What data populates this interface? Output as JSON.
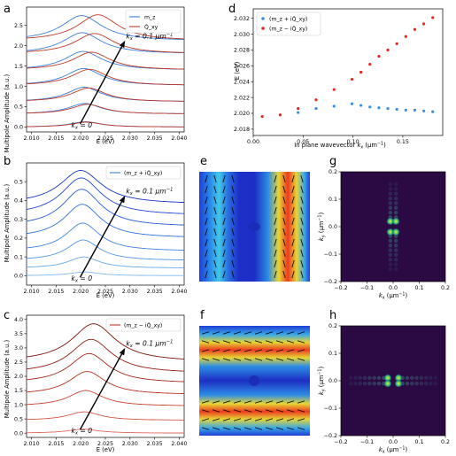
{
  "chart_data": [
    {
      "panel": "a",
      "type": "line",
      "xlabel": "E (eV)",
      "ylabel": "Multipole Amplitude (a.u.)",
      "xlim": [
        2.009,
        2.041
      ],
      "ylim": [
        -0.12,
        2.95
      ],
      "xticks": [
        "2.010",
        "2.015",
        "2.020",
        "2.025",
        "2.030",
        "2.035",
        "2.040"
      ],
      "yticks": [
        "0.0",
        "0.5",
        "1.0",
        "1.5",
        "2.0",
        "2.5"
      ],
      "legend": {
        "position": "top-right",
        "entries": [
          {
            "label": "m_z",
            "color": "#3b7ddd"
          },
          {
            "label": "Q̂_xy",
            "color": "#c0392b"
          }
        ]
      },
      "annotations": {
        "start": "k_x = 0",
        "end": "k_x = 0.1 μm^-1"
      },
      "series": [
        {
          "offset": 0.0,
          "peak_E": [
            2.021,
            2.0212
          ],
          "amp": [
            0.13,
            0.12
          ],
          "width": 0.0038
        },
        {
          "offset": 0.32,
          "peak_E": [
            2.0208,
            2.0214
          ],
          "amp": [
            0.26,
            0.24
          ],
          "width": 0.004
        },
        {
          "offset": 0.62,
          "peak_E": [
            2.0207,
            2.0216
          ],
          "amp": [
            0.36,
            0.34
          ],
          "width": 0.0042
        },
        {
          "offset": 1.02,
          "peak_E": [
            2.0206,
            2.0218
          ],
          "amp": [
            0.42,
            0.4
          ],
          "width": 0.0044
        },
        {
          "offset": 1.4,
          "peak_E": [
            2.0205,
            2.0222
          ],
          "amp": [
            0.46,
            0.44
          ],
          "width": 0.0046
        },
        {
          "offset": 1.8,
          "peak_E": [
            2.0203,
            2.0228
          ],
          "amp": [
            0.52,
            0.5
          ],
          "width": 0.0048
        },
        {
          "offset": 2.12,
          "peak_E": [
            2.0202,
            2.0235
          ],
          "amp": [
            0.62,
            0.64
          ],
          "width": 0.005
        }
      ]
    },
    {
      "panel": "b",
      "type": "line",
      "xlabel": "E (eV)",
      "ylabel": "Multipole Amplitude (a.u.)",
      "xlim": [
        2.009,
        2.041
      ],
      "ylim": [
        -0.05,
        0.6
      ],
      "xticks": [
        "2.010",
        "2.015",
        "2.020",
        "2.025",
        "2.030",
        "2.035",
        "2.040"
      ],
      "yticks": [
        "0.0",
        "0.1",
        "0.2",
        "0.3",
        "0.4",
        "0.5"
      ],
      "legend": {
        "position": "top-right",
        "entries": [
          {
            "label": "(m_z + iQ̂_xy)",
            "color": "#3b7ddd"
          }
        ]
      },
      "annotations": {
        "start": "k_x = 0",
        "end": "k_x = 0.1 μm^-1"
      },
      "series": [
        {
          "offset": 0.0,
          "peak_E": 2.0208,
          "amp": 0.02,
          "width": 0.0036,
          "color": "#7fb8ee"
        },
        {
          "offset": 0.04,
          "peak_E": 2.0206,
          "amp": 0.06,
          "width": 0.0038,
          "color": "#6aa9ea"
        },
        {
          "offset": 0.08,
          "peak_E": 2.0205,
          "amp": 0.11,
          "width": 0.004,
          "color": "#5597e6"
        },
        {
          "offset": 0.13,
          "peak_E": 2.0204,
          "amp": 0.15,
          "width": 0.0042,
          "color": "#4383e2"
        },
        {
          "offset": 0.2,
          "peak_E": 2.0203,
          "amp": 0.18,
          "width": 0.0045,
          "color": "#3370dc"
        },
        {
          "offset": 0.26,
          "peak_E": 2.0202,
          "amp": 0.2,
          "width": 0.0047,
          "color": "#2a5cd6"
        },
        {
          "offset": 0.32,
          "peak_E": 2.0201,
          "amp": 0.2,
          "width": 0.0049,
          "color": "#2248ce"
        },
        {
          "offset": 0.38,
          "peak_E": 2.02,
          "amp": 0.18,
          "width": 0.0051,
          "color": "#1a34c6"
        }
      ]
    },
    {
      "panel": "c",
      "type": "line",
      "xlabel": "E (eV)",
      "ylabel": "Multipole Amplitude (a.u.)",
      "xlim": [
        2.009,
        2.041
      ],
      "ylim": [
        -0.15,
        4.15
      ],
      "xticks": [
        "2.010",
        "2.015",
        "2.020",
        "2.025",
        "2.030",
        "2.035",
        "2.040"
      ],
      "yticks": [
        "0.0",
        "0.5",
        "1.0",
        "1.5",
        "2.0",
        "2.5",
        "3.0",
        "3.5",
        "4.0"
      ],
      "legend": {
        "position": "top-right",
        "entries": [
          {
            "label": "(m_z − iQ̂_xy)",
            "color": "#c0392b"
          }
        ]
      },
      "annotations": {
        "start": "k_x = 0",
        "end": "k_x = 0.1 μm^-1"
      },
      "series": [
        {
          "offset": 0.0,
          "peak_E": 2.0205,
          "amp": 0.14,
          "width": 0.0038,
          "color": "#e06a5e"
        },
        {
          "offset": 0.45,
          "peak_E": 2.0207,
          "amp": 0.3,
          "width": 0.004,
          "color": "#d55548"
        },
        {
          "offset": 0.95,
          "peak_E": 2.021,
          "amp": 0.55,
          "width": 0.0042,
          "color": "#c9412f"
        },
        {
          "offset": 1.35,
          "peak_E": 2.0213,
          "amp": 0.82,
          "width": 0.0045,
          "color": "#b93320"
        },
        {
          "offset": 1.75,
          "peak_E": 2.0217,
          "amp": 1.05,
          "width": 0.0048,
          "color": "#a52818"
        },
        {
          "offset": 2.1,
          "peak_E": 2.0221,
          "amp": 1.2,
          "width": 0.0051,
          "color": "#901e12"
        },
        {
          "offset": 2.5,
          "peak_E": 2.0226,
          "amp": 1.35,
          "width": 0.0054,
          "color": "#7c150d"
        }
      ]
    },
    {
      "panel": "d",
      "type": "scatter",
      "xlabel": "In plane wavevector k_x (μm^-1)",
      "ylabel": "E (eV)",
      "xlim": [
        0.0,
        0.19
      ],
      "ylim": [
        2.0172,
        2.0332
      ],
      "xticks": [
        "0.00",
        "0.05",
        "0.10",
        "0.15"
      ],
      "yticks": [
        "2.018",
        "2.020",
        "2.022",
        "2.024",
        "2.026",
        "2.028",
        "2.030",
        "2.032"
      ],
      "legend": {
        "position": "top-left"
      },
      "series": [
        {
          "name": "(m_z + iQ̂_xy)",
          "color": "#3a8fe0",
          "x": [
            0.045,
            0.063,
            0.081,
            0.099,
            0.108,
            0.117,
            0.126,
            0.135,
            0.144,
            0.153,
            0.162,
            0.171,
            0.18
          ],
          "y": [
            2.0201,
            2.0206,
            2.0209,
            2.0212,
            2.021,
            2.0208,
            2.0207,
            2.0206,
            2.0205,
            2.0204,
            2.0204,
            2.0203,
            2.0202
          ]
        },
        {
          "name": "(m_z − iQ̂_xy)",
          "color": "#e8261e",
          "x": [
            0.009,
            0.027,
            0.045,
            0.063,
            0.081,
            0.099,
            0.108,
            0.117,
            0.126,
            0.135,
            0.144,
            0.153,
            0.162,
            0.171,
            0.18
          ],
          "y": [
            2.0196,
            2.0198,
            2.0206,
            2.0217,
            2.023,
            2.0243,
            2.0252,
            2.0262,
            2.0272,
            2.028,
            2.0288,
            2.0297,
            2.0306,
            2.0313,
            2.0321
          ]
        }
      ]
    },
    {
      "panel": "e",
      "type": "heatmap",
      "pattern": "vertical-stripes",
      "colormap": "jet"
    },
    {
      "panel": "f",
      "type": "heatmap",
      "pattern": "horizontal-stripes",
      "colormap": "jet"
    },
    {
      "panel": "g",
      "type": "heatmap",
      "pattern": "vertical-line-spots",
      "colormap": "viridis",
      "xlabel": "k_x (μm^-1)",
      "ylabel": "k_y (μm^-1)",
      "xlim": [
        -0.2,
        0.2
      ],
      "ylim": [
        -0.2,
        0.2
      ],
      "xticks": [
        "−0.2",
        "−0.1",
        "0.0",
        "0.1",
        "0.2"
      ],
      "yticks": [
        "−0.2",
        "−0.1",
        "0.0",
        "0.1",
        "0.2"
      ]
    },
    {
      "panel": "h",
      "type": "heatmap",
      "pattern": "horizontal-line-spots",
      "colormap": "viridis",
      "xlabel": "k_x (μm^-1)",
      "ylabel": "k_y (μm^-1)",
      "xlim": [
        -0.2,
        0.2
      ],
      "ylim": [
        -0.2,
        0.2
      ],
      "xticks": [
        "−0.2",
        "−0.1",
        "0.0",
        "0.1",
        "0.2"
      ],
      "yticks": [
        "−0.2",
        "−0.1",
        "0.0",
        "0.1",
        "0.2"
      ]
    }
  ],
  "labels": {
    "panel_a": "a",
    "panel_b": "b",
    "panel_c": "c",
    "panel_d": "d",
    "panel_e": "e",
    "panel_f": "f",
    "panel_g": "g",
    "panel_h": "h",
    "ylabel_abc": "Multipole Amplitude (a.u.)",
    "xlabel_abc": "E (eV)",
    "d_xlabel": "In plane wavevector",
    "d_ylabel": "E (eV)",
    "g_xlabel": "k",
    "g_ylabel": "k",
    "k0": "k",
    "k1": "k",
    "leg_mz": "m",
    "leg_q": "Q̂"
  }
}
